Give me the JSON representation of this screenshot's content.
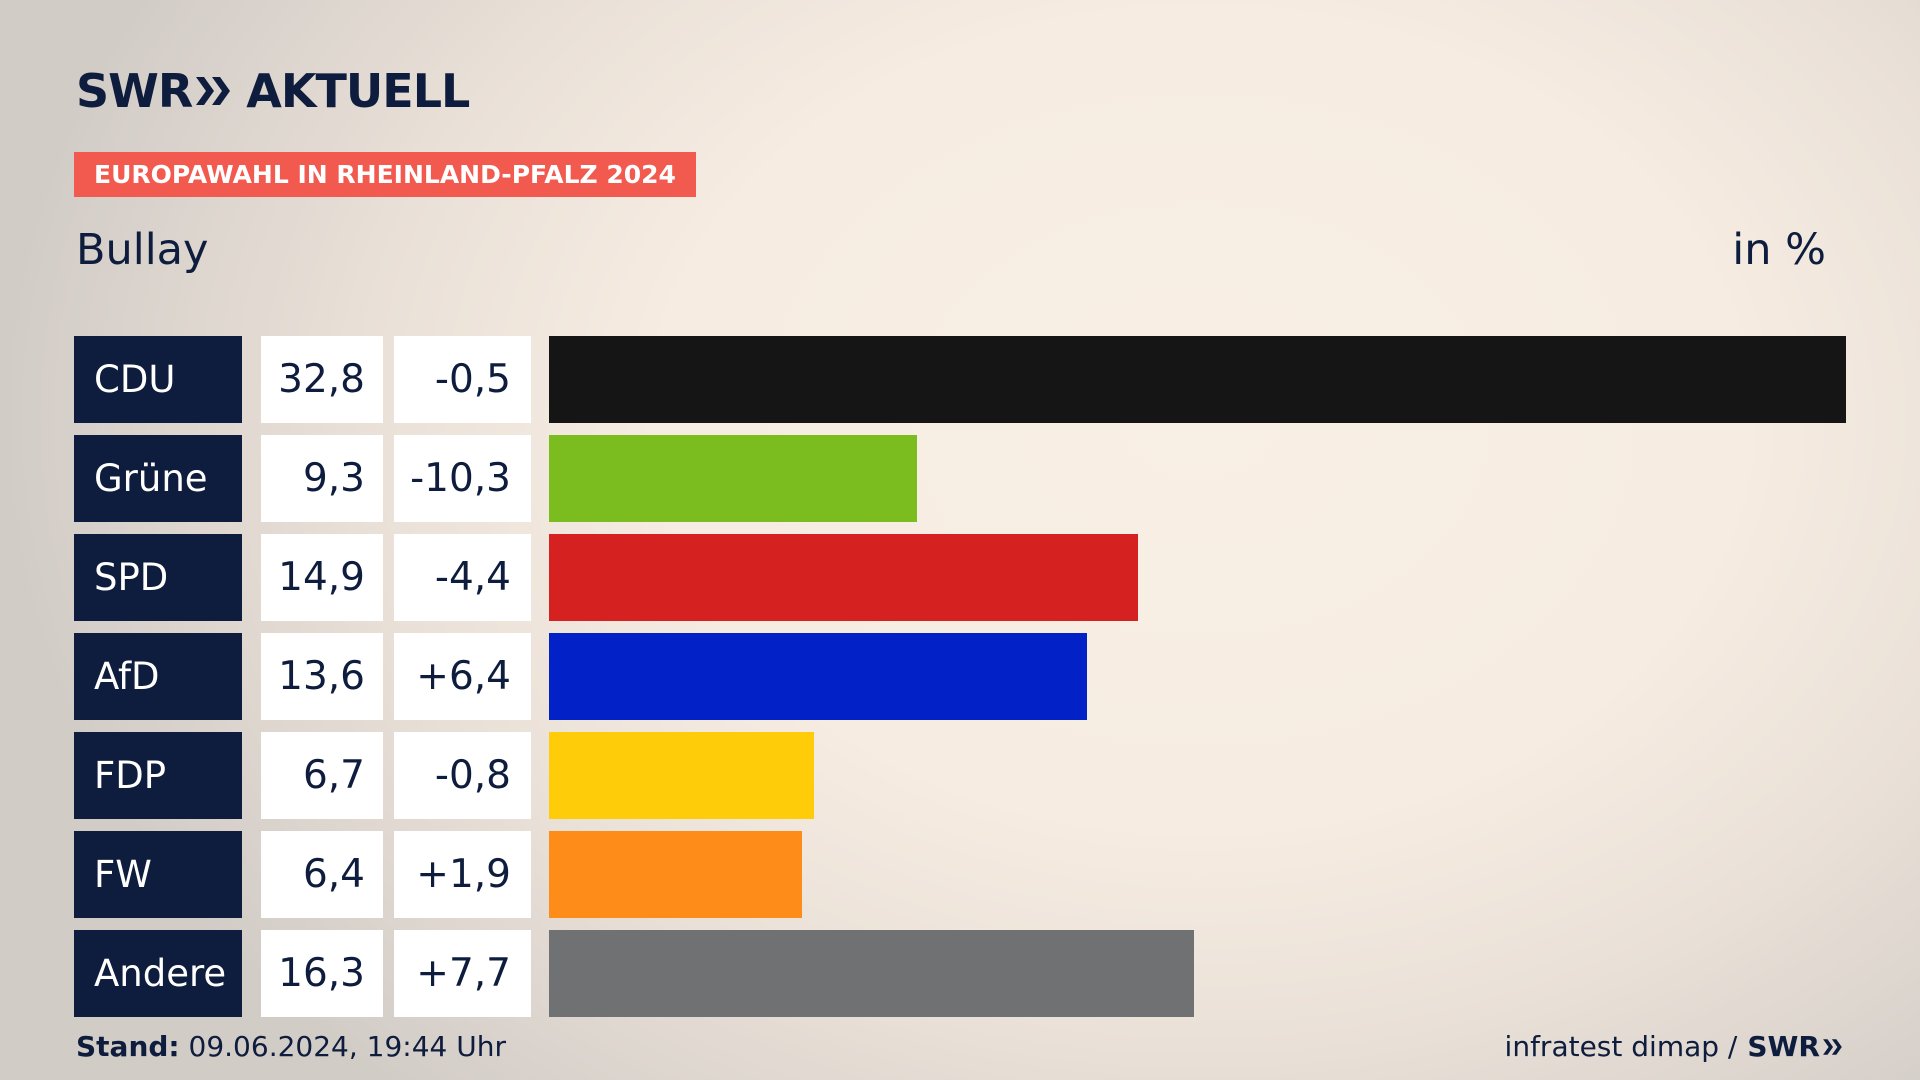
{
  "brand": {
    "logo_prefix": "SWR",
    "logo_suffix": "AKTUELL"
  },
  "badge": "EUROPAWAHL IN RHEINLAND-PFALZ 2024",
  "location": "Bullay",
  "unit": "in %",
  "colors": {
    "navy": "#0e1c3d",
    "badge": "#f25a4f"
  },
  "chart_data": {
    "type": "bar",
    "orientation": "horizontal",
    "categories": [
      "CDU",
      "Grüne",
      "SPD",
      "AfD",
      "FDP",
      "FW",
      "Andere"
    ],
    "values": [
      32.8,
      9.3,
      14.9,
      13.6,
      6.7,
      6.4,
      16.3
    ],
    "value_labels": [
      "32,8",
      "9,3",
      "14,9",
      "13,6",
      "6,7",
      "6,4",
      "16,3"
    ],
    "diff_labels": [
      "-0,5",
      "-10,3",
      "-4,4",
      "+6,4",
      "-0,8",
      "+1,9",
      "+7,7"
    ],
    "diffs": [
      -0.5,
      -10.3,
      -4.4,
      6.4,
      -0.8,
      1.9,
      7.7
    ],
    "bar_colors": [
      "#151515",
      "#7bbd1e",
      "#d62121",
      "#0222c8",
      "#ffcc0a",
      "#fd8c18",
      "#707173"
    ],
    "unit": "in %",
    "xlim": [
      0,
      32.8
    ]
  },
  "footer": {
    "stand_label": "Stand:",
    "stand_value": "09.06.2024, 19:44 Uhr",
    "source": "infratest dimap /",
    "source_logo": "SWR"
  }
}
